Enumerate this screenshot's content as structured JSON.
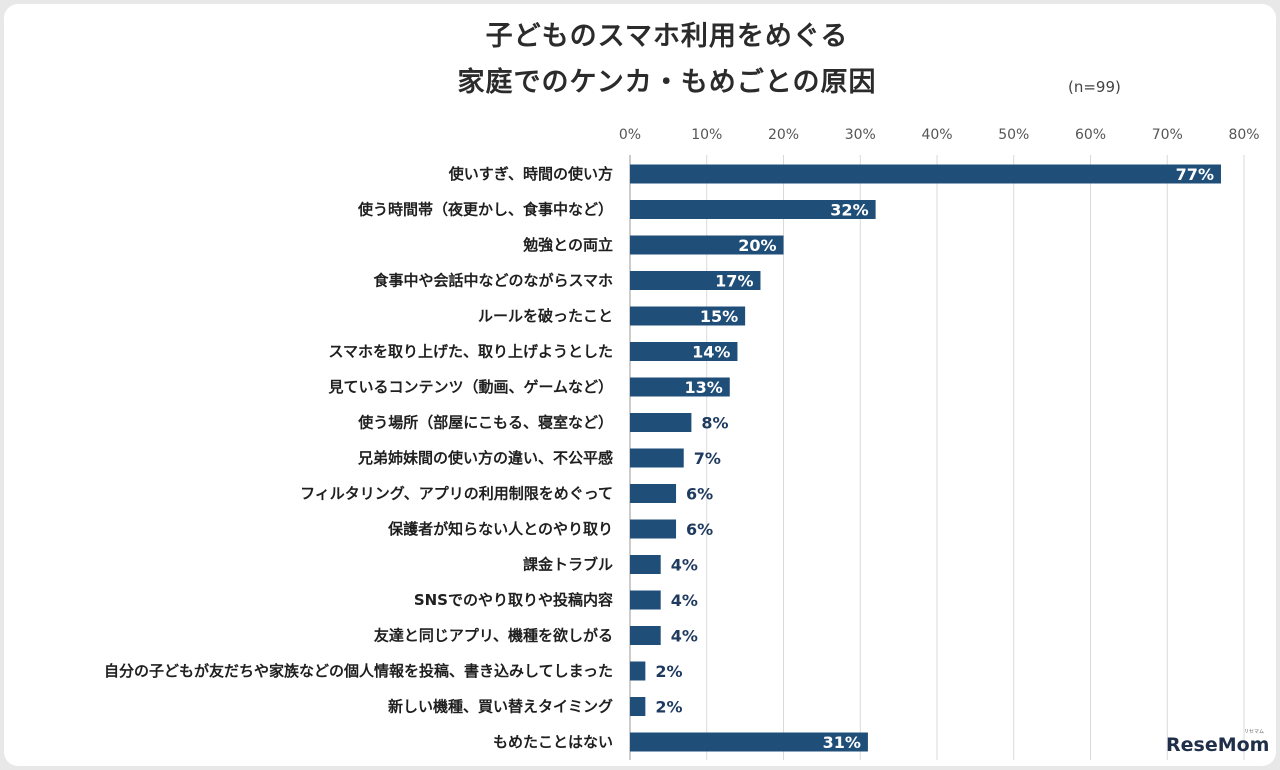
{
  "title_line1": "子どものスマホ利用をめぐる",
  "title_line2": "家庭でのケンカ・もめごとの原因",
  "sample_note": "(n=99)",
  "brand": "ReseMom",
  "brand_small": "リセマム",
  "colors": {
    "bar": "#1f4e79",
    "grid": "#d9d9d9",
    "label_dark": "#1f3a5f"
  },
  "chart_data": {
    "type": "bar",
    "orientation": "horizontal",
    "title": "子どものスマホ利用をめぐる 家庭でのケンカ・もめごとの原因",
    "xlim": [
      0,
      80
    ],
    "x_ticks": [
      "0%",
      "10%",
      "20%",
      "30%",
      "40%",
      "50%",
      "60%",
      "70%",
      "80%"
    ],
    "grid": true,
    "categories": [
      "使いすぎ、時間の使い方",
      "使う時間帯（夜更かし、食事中など）",
      "勉強との両立",
      "食事中や会話中などのながらスマホ",
      "ルールを破ったこと",
      "スマホを取り上げた、取り上げようとした",
      "見ているコンテンツ（動画、ゲームなど）",
      "使う場所（部屋にこもる、寝室など）",
      "兄弟姉妹間の使い方の違い、不公平感",
      "フィルタリング、アプリの利用制限をめぐって",
      "保護者が知らない人とのやり取り",
      "課金トラブル",
      "SNSでのやり取りや投稿内容",
      "友達と同じアプリ、機種を欲しがる",
      "自分の子どもが友だちや家族などの個人情報を投稿、書き込みしてしまった",
      "新しい機種、買い替えタイミング",
      "もめたことはない"
    ],
    "values": [
      77,
      32,
      20,
      17,
      15,
      14,
      13,
      8,
      7,
      6,
      6,
      4,
      4,
      4,
      2,
      2,
      31
    ],
    "value_labels": [
      "77%",
      "32%",
      "20%",
      "17%",
      "15%",
      "14%",
      "13%",
      "8%",
      "7%",
      "6%",
      "6%",
      "4%",
      "4%",
      "4%",
      "2%",
      "2%",
      "31%"
    ]
  }
}
